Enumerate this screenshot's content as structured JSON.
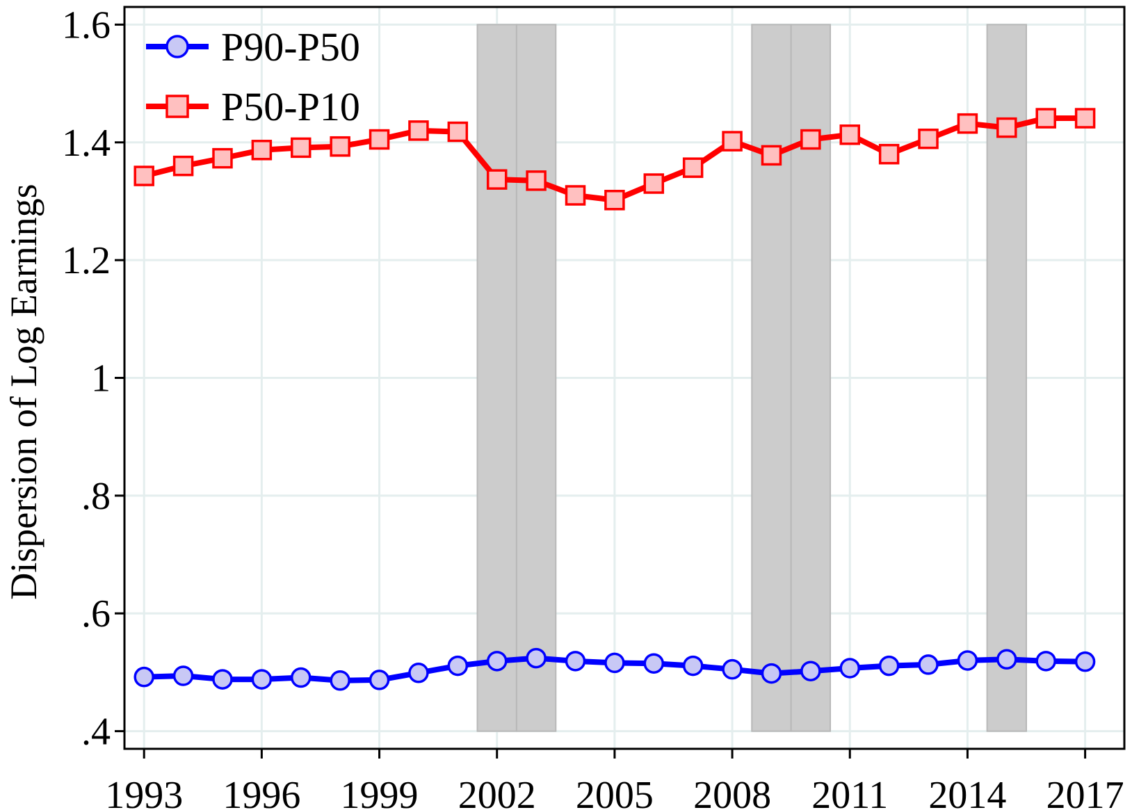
{
  "chart_data": {
    "type": "line",
    "title": "",
    "xlabel": "",
    "ylabel": "Dispersion of Log Earnings",
    "xlim": [
      1992.5,
      2018
    ],
    "ylim": [
      0.37,
      1.63
    ],
    "x_ticks": [
      1993,
      1996,
      1999,
      2002,
      2005,
      2008,
      2011,
      2014,
      2017
    ],
    "y_ticks": [
      {
        "value": 0.4,
        "label": ".4"
      },
      {
        "value": 0.6,
        "label": ".6"
      },
      {
        "value": 0.8,
        "label": ".8"
      },
      {
        "value": 1.0,
        "label": "1"
      },
      {
        "value": 1.2,
        "label": "1.2"
      },
      {
        "value": 1.4,
        "label": "1.4"
      },
      {
        "value": 1.6,
        "label": "1.6"
      }
    ],
    "x_grid": [
      1993,
      1996,
      1999,
      2002,
      2005,
      2008,
      2011,
      2014,
      2017
    ],
    "y_grid": [
      0.4,
      0.6,
      0.8,
      1.0,
      1.2,
      1.4,
      1.6
    ],
    "grid": true,
    "legend_position": "top-left",
    "shaded_regions": [
      {
        "x0": 2001.5,
        "x1": 2002.5
      },
      {
        "x0": 2002.5,
        "x1": 2003.5
      },
      {
        "x0": 2008.5,
        "x1": 2009.5
      },
      {
        "x0": 2009.5,
        "x1": 2010.5
      },
      {
        "x0": 2014.5,
        "x1": 2015.5
      }
    ],
    "x": [
      1993,
      1994,
      1995,
      1996,
      1997,
      1998,
      1999,
      2000,
      2001,
      2002,
      2003,
      2004,
      2005,
      2006,
      2007,
      2008,
      2009,
      2010,
      2011,
      2012,
      2013,
      2014,
      2015,
      2016,
      2017
    ],
    "series": [
      {
        "name": "P90-P50",
        "marker": "circle",
        "line_color": "#0000ff",
        "fill_color": "#c8c8f5",
        "values": [
          0.492,
          0.494,
          0.488,
          0.488,
          0.491,
          0.486,
          0.487,
          0.499,
          0.511,
          0.519,
          0.524,
          0.519,
          0.516,
          0.515,
          0.511,
          0.505,
          0.498,
          0.502,
          0.507,
          0.511,
          0.513,
          0.52,
          0.522,
          0.519,
          0.518
        ]
      },
      {
        "name": "P50-P10",
        "marker": "square",
        "line_color": "#ff0000",
        "fill_color": "#ffc0c0",
        "values": [
          1.343,
          1.36,
          1.373,
          1.387,
          1.391,
          1.393,
          1.405,
          1.42,
          1.418,
          1.337,
          1.335,
          1.31,
          1.302,
          1.33,
          1.357,
          1.402,
          1.378,
          1.405,
          1.413,
          1.38,
          1.406,
          1.432,
          1.425,
          1.441,
          1.441
        ]
      }
    ]
  },
  "colors": {
    "grid": "#e4eeee",
    "shade": "#cccccc",
    "shade_edge": "#b8b8b8",
    "axis": "#000000"
  }
}
